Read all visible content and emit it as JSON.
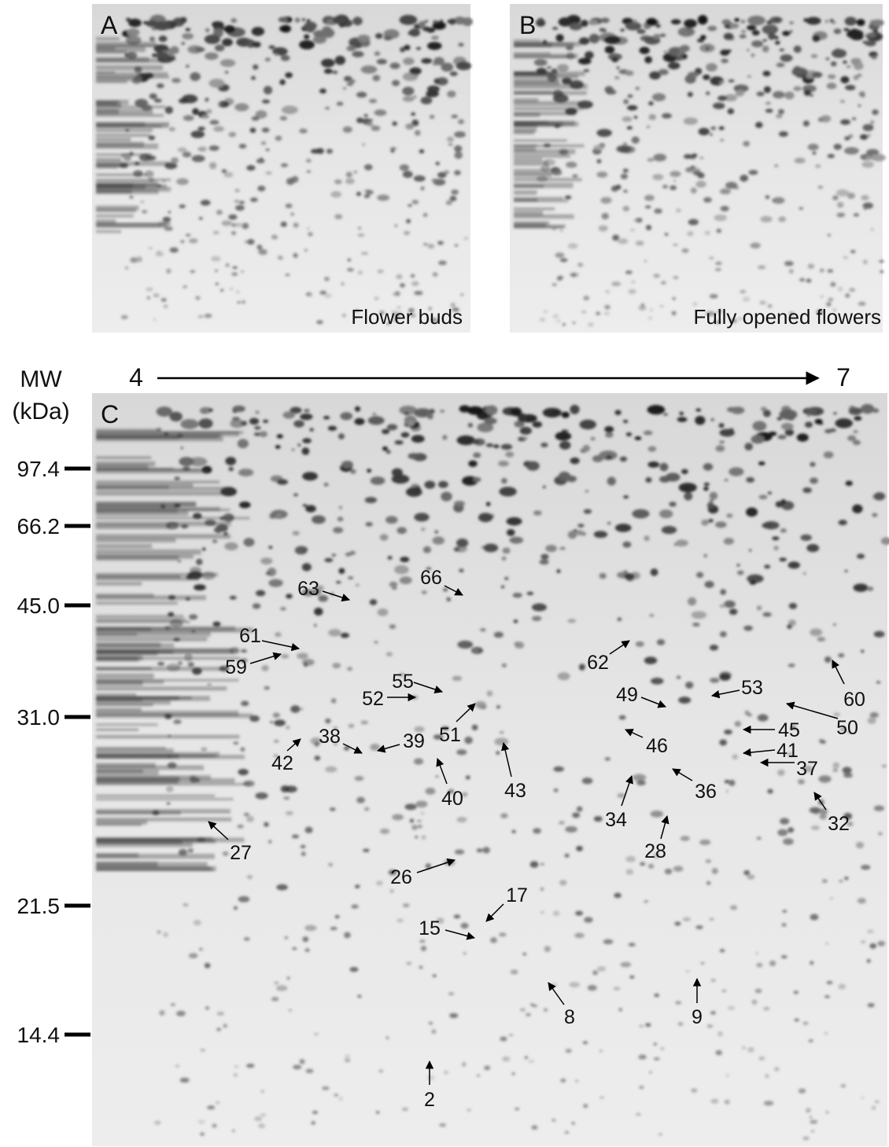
{
  "panels": [
    {
      "label": "A",
      "caption": "Flower buds"
    },
    {
      "label": "B",
      "caption": "Fully opened flowers"
    },
    {
      "label": "C"
    }
  ],
  "mw_axis": {
    "title": "MW",
    "unit": "(kDa)",
    "markers": [
      "97.4",
      "66.2",
      "45.0",
      "31.0",
      "21.5",
      "14.4"
    ]
  },
  "pi_axis": {
    "start": "4",
    "end": "7"
  },
  "spots": [
    "66",
    "63",
    "61",
    "59",
    "62",
    "55",
    "52",
    "51",
    "49",
    "53",
    "60",
    "50",
    "45",
    "46",
    "41",
    "37",
    "38",
    "39",
    "42",
    "40",
    "43",
    "34",
    "36",
    "32",
    "28",
    "27",
    "26",
    "17",
    "15",
    "8",
    "9",
    "2"
  ]
}
